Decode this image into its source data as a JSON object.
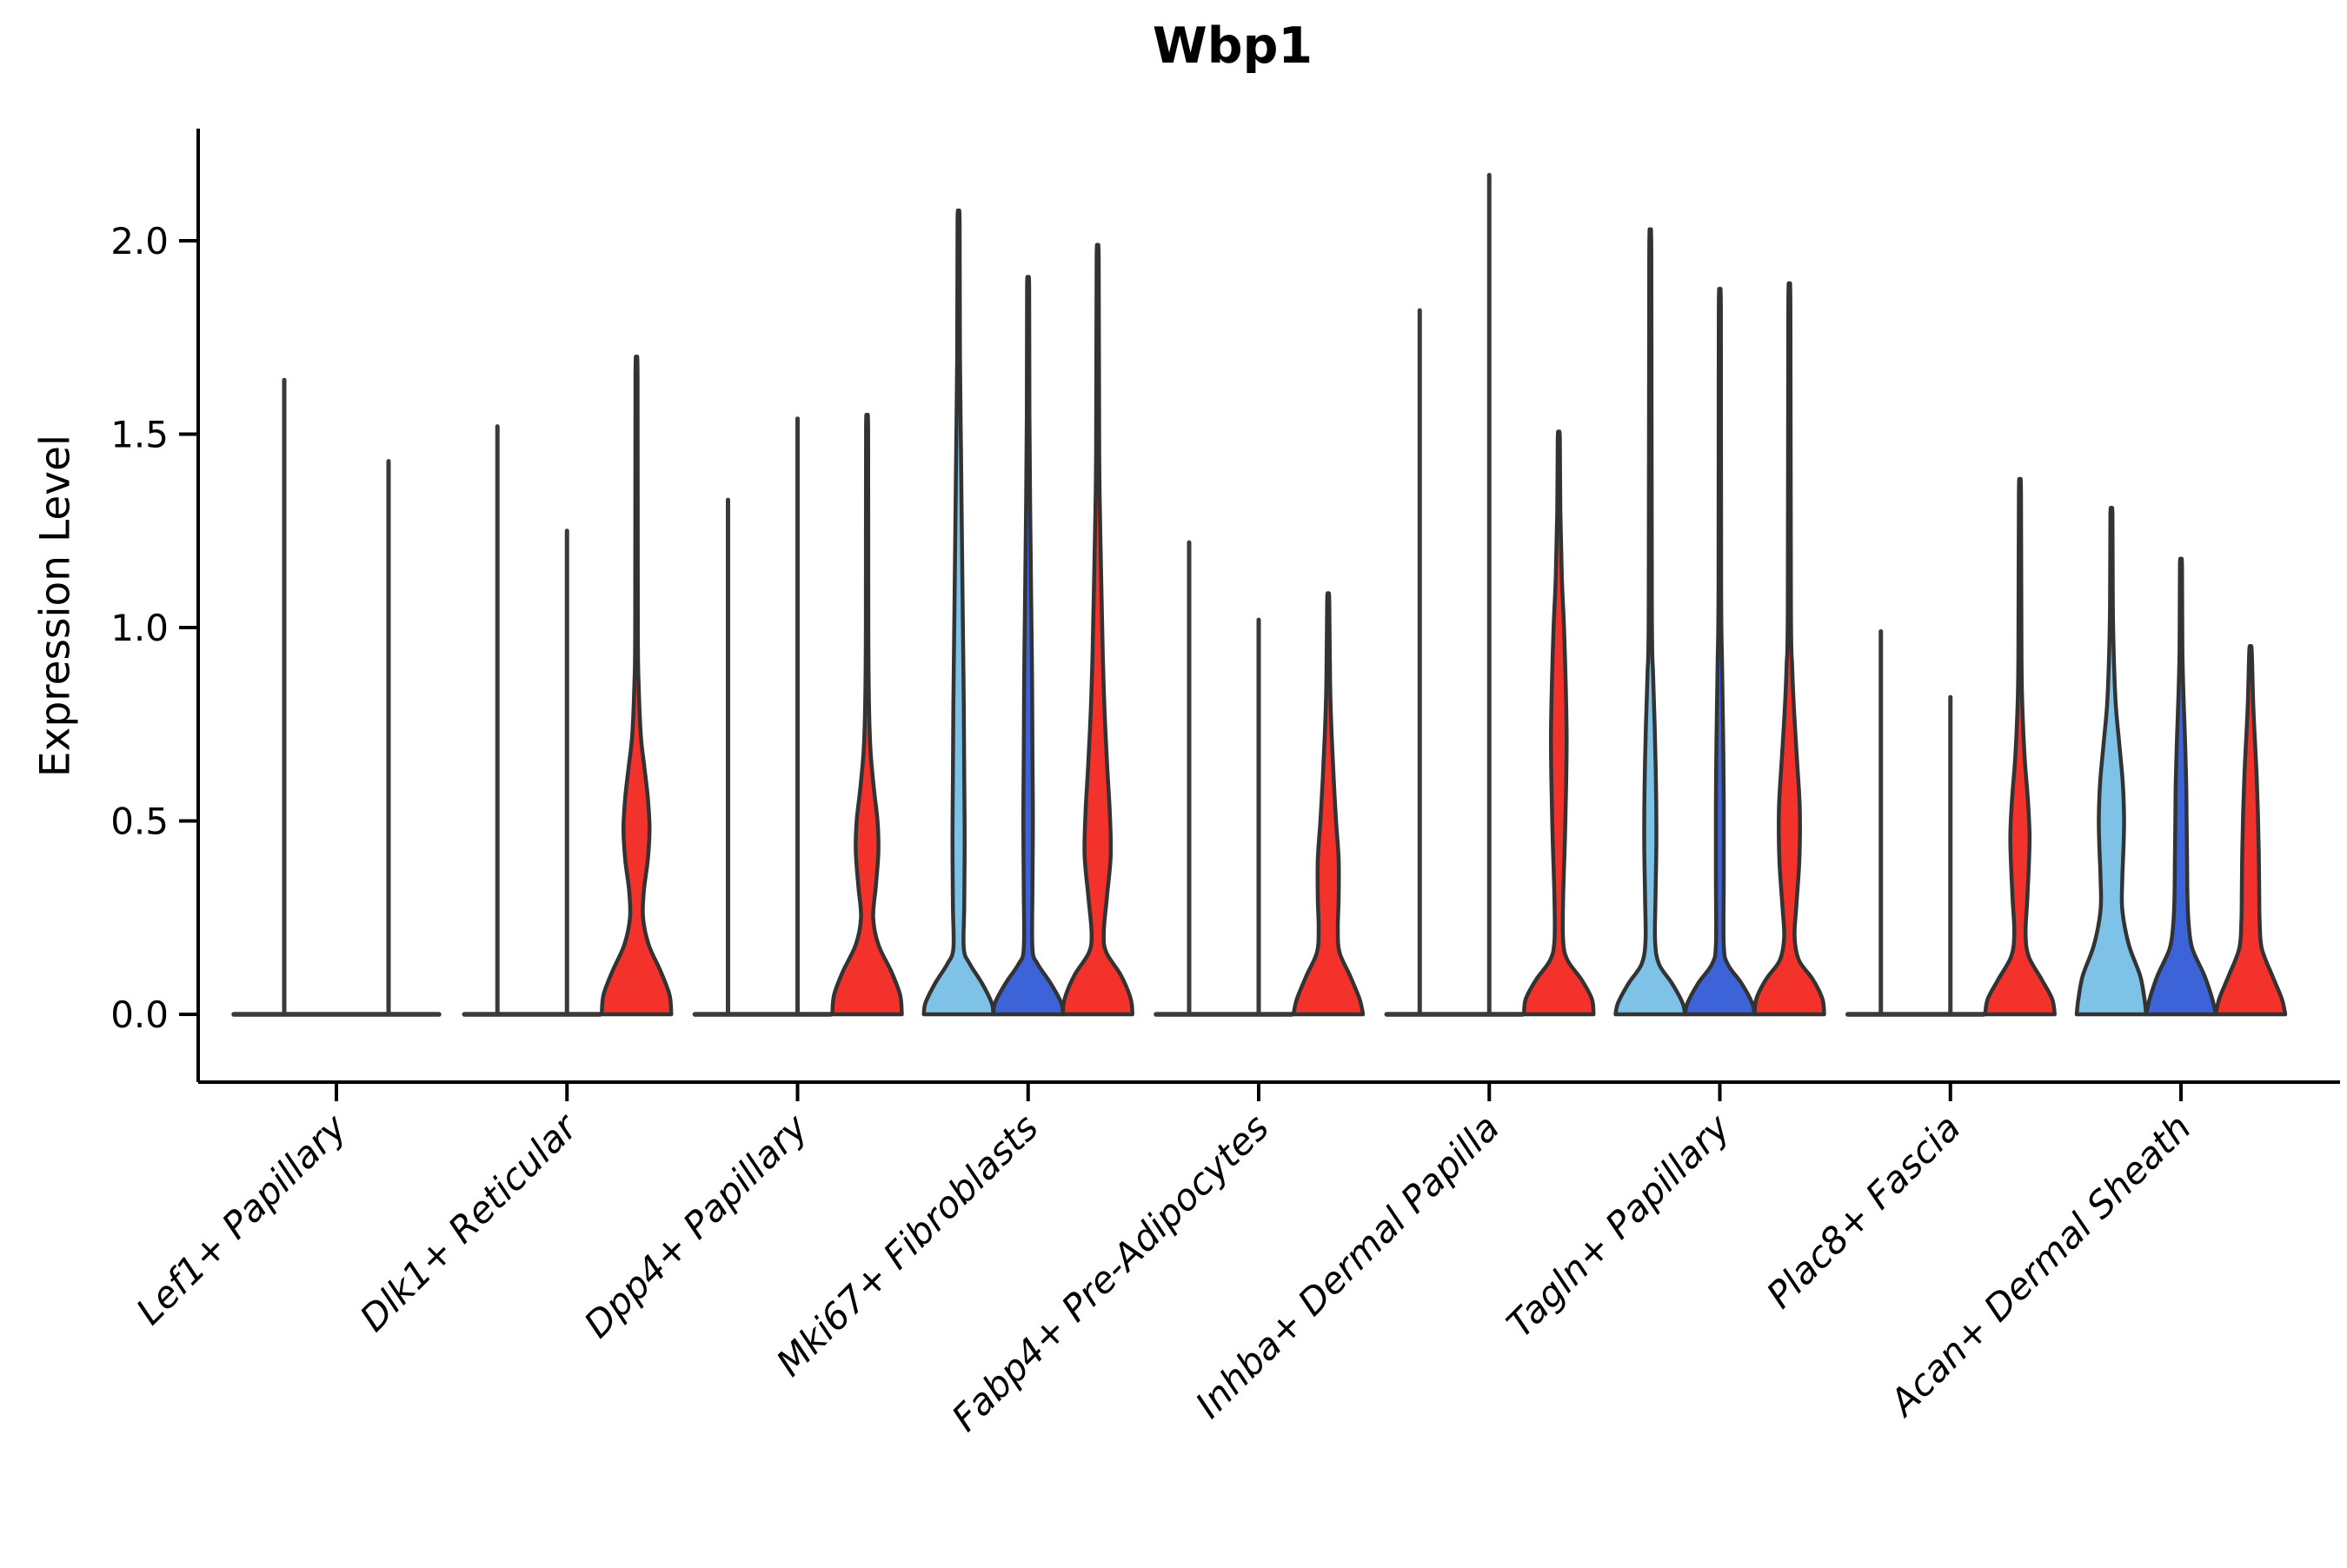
{
  "chart_data": {
    "type": "violin",
    "title": "Wbp1",
    "ylabel": "Expression Level",
    "xlabel": "",
    "yticks": [
      "0.0",
      "0.5",
      "1.0",
      "1.5",
      "2.0"
    ],
    "ytick_values": [
      0.0,
      0.5,
      1.0,
      1.5,
      2.0
    ],
    "ylim": [
      -0.18,
      2.29
    ],
    "grid": false,
    "legend": "none",
    "split_colors": {
      "skyblue": "#7FC2E7",
      "blue": "#3D63D8",
      "red": "#F2322B"
    },
    "outline_color": "#333333",
    "spike_color": "#3A3A3A",
    "axis_color": "#000000",
    "categories": [
      "Lef1+ Papillary",
      "Dlk1+ Reticular",
      "Dpp4+ Papillary",
      "Mki67+ Fibroblasts",
      "Fabp4+ Pre-Adipocytes",
      "Inhba+ Dermal Papilla",
      "Tagln+ Papillary",
      "Plac8+ Fascia",
      "Acan+ Dermal Sheath"
    ],
    "groups": [
      {
        "category": "Lef1+ Papillary",
        "violins": [
          {
            "pos": 1,
            "color": "none",
            "fill_visible": false,
            "shape": "flat",
            "max": 1.64
          },
          {
            "pos": 2,
            "color": "none",
            "fill_visible": false,
            "shape": "flat",
            "max": 1.43
          }
        ]
      },
      {
        "category": "Dlk1+ Reticular",
        "violins": [
          {
            "pos": 1,
            "color": "none",
            "fill_visible": false,
            "shape": "flat",
            "max": 1.52
          },
          {
            "pos": 2,
            "color": "none",
            "fill_visible": false,
            "shape": "flat",
            "max": 1.25
          },
          {
            "pos": 3,
            "color": "red",
            "fill_visible": true,
            "shape": "violin",
            "max": 1.65,
            "profile": [
              [
                0,
                40
              ],
              [
                0.05,
                38
              ],
              [
                0.11,
                28
              ],
              [
                0.18,
                14
              ],
              [
                0.25,
                7.5
              ],
              [
                0.32,
                8.5
              ],
              [
                0.4,
                13
              ],
              [
                0.48,
                15
              ],
              [
                0.56,
                13
              ],
              [
                0.64,
                9
              ],
              [
                0.72,
                5
              ],
              [
                0.85,
                2.5
              ],
              [
                1.0,
                1.5
              ],
              [
                1.65,
                1.2
              ]
            ]
          }
        ]
      },
      {
        "category": "Dpp4+ Papillary",
        "violins": [
          {
            "pos": 1,
            "color": "none",
            "fill_visible": false,
            "shape": "flat",
            "max": 1.33
          },
          {
            "pos": 2,
            "color": "none",
            "fill_visible": false,
            "shape": "flat",
            "max": 1.54
          },
          {
            "pos": 3,
            "color": "red",
            "fill_visible": true,
            "shape": "violin",
            "max": 1.51,
            "profile": [
              [
                0,
                40
              ],
              [
                0.05,
                38
              ],
              [
                0.11,
                28
              ],
              [
                0.18,
                13
              ],
              [
                0.25,
                7
              ],
              [
                0.33,
                10
              ],
              [
                0.42,
                13
              ],
              [
                0.5,
                12
              ],
              [
                0.58,
                8
              ],
              [
                0.68,
                4
              ],
              [
                0.8,
                2.2
              ],
              [
                1.0,
                1.4
              ],
              [
                1.51,
                1.2
              ]
            ]
          }
        ]
      },
      {
        "category": "Mki67+ Fibroblasts",
        "violins": [
          {
            "pos": 1,
            "color": "skyblue",
            "fill_visible": true,
            "shape": "violin",
            "max": 2.05,
            "profile": [
              [
                0,
                40
              ],
              [
                0.03,
                38
              ],
              [
                0.08,
                27
              ],
              [
                0.13,
                13
              ],
              [
                0.17,
                6
              ],
              [
                0.28,
                6.5
              ],
              [
                0.45,
                7
              ],
              [
                0.62,
                6.5
              ],
              [
                0.8,
                6
              ],
              [
                1.0,
                5
              ],
              [
                1.2,
                4
              ],
              [
                1.45,
                2.8
              ],
              [
                1.7,
                1.6
              ],
              [
                2.05,
                1.2
              ]
            ]
          },
          {
            "pos": 2,
            "color": "blue",
            "fill_visible": true,
            "shape": "violin",
            "max": 1.88,
            "profile": [
              [
                0,
                40
              ],
              [
                0.03,
                38
              ],
              [
                0.08,
                26
              ],
              [
                0.13,
                11
              ],
              [
                0.17,
                5
              ],
              [
                0.32,
                5
              ],
              [
                0.5,
                5.5
              ],
              [
                0.68,
                5
              ],
              [
                0.88,
                4.5
              ],
              [
                1.08,
                3.5
              ],
              [
                1.3,
                2.4
              ],
              [
                1.55,
                1.5
              ],
              [
                1.88,
                1.2
              ]
            ]
          },
          {
            "pos": 3,
            "color": "red",
            "fill_visible": true,
            "shape": "violin",
            "max": 1.95,
            "profile": [
              [
                0,
                40
              ],
              [
                0.04,
                38
              ],
              [
                0.1,
                27
              ],
              [
                0.16,
                10
              ],
              [
                0.21,
                7
              ],
              [
                0.3,
                10.5
              ],
              [
                0.41,
                15
              ],
              [
                0.52,
                14
              ],
              [
                0.64,
                11
              ],
              [
                0.78,
                8
              ],
              [
                0.92,
                6
              ],
              [
                1.08,
                4.5
              ],
              [
                1.25,
                3
              ],
              [
                1.45,
                1.8
              ],
              [
                1.95,
                1.2
              ]
            ]
          }
        ]
      },
      {
        "category": "Fabp4+ Pre-Adipocytes",
        "violins": [
          {
            "pos": 1,
            "color": "none",
            "fill_visible": false,
            "shape": "flat",
            "max": 1.22
          },
          {
            "pos": 2,
            "color": "none",
            "fill_visible": false,
            "shape": "flat",
            "max": 1.02
          },
          {
            "pos": 3,
            "color": "red",
            "fill_visible": true,
            "shape": "violin",
            "max": 1.07,
            "profile": [
              [
                0,
                40
              ],
              [
                0.04,
                36
              ],
              [
                0.1,
                25
              ],
              [
                0.16,
                13
              ],
              [
                0.22,
                11
              ],
              [
                0.3,
                12
              ],
              [
                0.4,
                12
              ],
              [
                0.5,
                9
              ],
              [
                0.6,
                6.5
              ],
              [
                0.72,
                4
              ],
              [
                0.85,
                2.2
              ],
              [
                1.07,
                1.2
              ]
            ]
          }
        ]
      },
      {
        "category": "Inhba+ Dermal Papilla",
        "violins": [
          {
            "pos": 1,
            "color": "none",
            "fill_visible": false,
            "shape": "flat",
            "max": 1.82
          },
          {
            "pos": 2,
            "color": "none",
            "fill_visible": false,
            "shape": "flat",
            "max": 2.17
          },
          {
            "pos": 3,
            "color": "red",
            "fill_visible": true,
            "shape": "violin",
            "max": 1.49,
            "profile": [
              [
                0,
                40
              ],
              [
                0.04,
                38
              ],
              [
                0.09,
                26
              ],
              [
                0.14,
                10
              ],
              [
                0.19,
                5
              ],
              [
                0.3,
                5
              ],
              [
                0.45,
                7
              ],
              [
                0.6,
                8.5
              ],
              [
                0.72,
                9
              ],
              [
                0.85,
                8
              ],
              [
                1.0,
                6
              ],
              [
                1.13,
                3.5
              ],
              [
                1.3,
                1.8
              ],
              [
                1.49,
                1.2
              ]
            ]
          }
        ]
      },
      {
        "category": "Tagln+ Papillary",
        "violins": [
          {
            "pos": 1,
            "color": "skyblue",
            "fill_visible": true,
            "shape": "violin",
            "max": 1.96,
            "profile": [
              [
                0,
                40
              ],
              [
                0.03,
                37
              ],
              [
                0.08,
                25
              ],
              [
                0.13,
                10
              ],
              [
                0.19,
                5.5
              ],
              [
                0.3,
                6
              ],
              [
                0.45,
                7
              ],
              [
                0.6,
                6.5
              ],
              [
                0.75,
                5
              ],
              [
                0.88,
                3.2
              ],
              [
                1.05,
                1.8
              ],
              [
                1.96,
                1.2
              ]
            ]
          },
          {
            "pos": 2,
            "color": "blue",
            "fill_visible": true,
            "shape": "violin",
            "max": 1.82,
            "profile": [
              [
                0,
                40
              ],
              [
                0.03,
                37
              ],
              [
                0.08,
                25
              ],
              [
                0.13,
                9
              ],
              [
                0.18,
                4.5
              ],
              [
                0.35,
                4.5
              ],
              [
                0.55,
                4.5
              ],
              [
                0.72,
                3.8
              ],
              [
                0.9,
                2.6
              ],
              [
                1.1,
                1.5
              ],
              [
                1.82,
                1.2
              ]
            ]
          },
          {
            "pos": 3,
            "color": "red",
            "fill_visible": true,
            "shape": "violin",
            "max": 1.83,
            "profile": [
              [
                0,
                40
              ],
              [
                0.04,
                38
              ],
              [
                0.09,
                27
              ],
              [
                0.14,
                11
              ],
              [
                0.2,
                6
              ],
              [
                0.28,
                8
              ],
              [
                0.4,
                11.5
              ],
              [
                0.53,
                12
              ],
              [
                0.65,
                9
              ],
              [
                0.78,
                5.5
              ],
              [
                0.9,
                3.2
              ],
              [
                1.05,
                1.8
              ],
              [
                1.83,
                1.2
              ]
            ]
          }
        ]
      },
      {
        "category": "Plac8+ Fascia",
        "violins": [
          {
            "pos": 1,
            "color": "none",
            "fill_visible": false,
            "shape": "flat",
            "max": 0.99
          },
          {
            "pos": 2,
            "color": "none",
            "fill_visible": false,
            "shape": "flat",
            "max": 0.82
          },
          {
            "pos": 3,
            "color": "red",
            "fill_visible": true,
            "shape": "violin",
            "max": 1.35,
            "profile": [
              [
                0,
                40
              ],
              [
                0.04,
                37
              ],
              [
                0.09,
                25
              ],
              [
                0.15,
                10
              ],
              [
                0.21,
                6.5
              ],
              [
                0.3,
                8.5
              ],
              [
                0.4,
                10.5
              ],
              [
                0.47,
                11
              ],
              [
                0.56,
                9
              ],
              [
                0.66,
                5.5
              ],
              [
                0.78,
                3
              ],
              [
                0.92,
                1.8
              ],
              [
                1.35,
                1.2
              ]
            ]
          }
        ]
      },
      {
        "category": "Acan+ Dermal Sheath",
        "violins": [
          {
            "pos": 1,
            "color": "skyblue",
            "fill_visible": true,
            "shape": "violin",
            "max": 1.29,
            "profile": [
              [
                0,
                40
              ],
              [
                0.04,
                38
              ],
              [
                0.1,
                33
              ],
              [
                0.18,
                20
              ],
              [
                0.27,
                12.5
              ],
              [
                0.35,
                12.5
              ],
              [
                0.44,
                14
              ],
              [
                0.51,
                14.5
              ],
              [
                0.6,
                13
              ],
              [
                0.7,
                9
              ],
              [
                0.8,
                5
              ],
              [
                0.92,
                2.8
              ],
              [
                1.06,
                1.6
              ],
              [
                1.29,
                1.2
              ]
            ]
          },
          {
            "pos": 2,
            "color": "blue",
            "fill_visible": true,
            "shape": "violin",
            "max": 1.16,
            "profile": [
              [
                0,
                40
              ],
              [
                0.04,
                36
              ],
              [
                0.1,
                27
              ],
              [
                0.17,
                13
              ],
              [
                0.23,
                9
              ],
              [
                0.3,
                7.5
              ],
              [
                0.4,
                7
              ],
              [
                0.5,
                6.5
              ],
              [
                0.6,
                6
              ],
              [
                0.72,
                4.5
              ],
              [
                0.83,
                2.8
              ],
              [
                0.95,
                1.6
              ],
              [
                1.16,
                1.2
              ]
            ]
          },
          {
            "pos": 3,
            "color": "red",
            "fill_visible": true,
            "shape": "violin",
            "max": 0.94,
            "profile": [
              [
                0,
                40
              ],
              [
                0.04,
                36
              ],
              [
                0.1,
                25
              ],
              [
                0.17,
                13
              ],
              [
                0.24,
                10.5
              ],
              [
                0.32,
                10
              ],
              [
                0.42,
                9.5
              ],
              [
                0.52,
                8.5
              ],
              [
                0.62,
                7
              ],
              [
                0.72,
                4.8
              ],
              [
                0.81,
                3
              ],
              [
                0.94,
                1.4
              ]
            ]
          }
        ]
      }
    ]
  }
}
